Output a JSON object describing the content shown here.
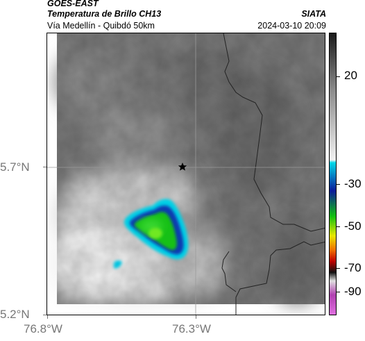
{
  "header": {
    "satellite": "GOES-EAST",
    "product": "Temperatura de Brillo CH13",
    "region": "Vía Medellín - Quibdó 50km",
    "org": "SIATA",
    "timestamp": "2024-03-10 20:09"
  },
  "map": {
    "lat_ticks": [
      {
        "value": 5.7,
        "label": "5.7°N"
      },
      {
        "value": 5.2,
        "label": "5.2°N"
      }
    ],
    "lon_ticks": [
      {
        "value": -76.8,
        "label": "76.8°W"
      },
      {
        "value": -76.3,
        "label": "76.3°W"
      }
    ],
    "marker": {
      "type": "star",
      "icon": "star-icon",
      "lon": -76.32,
      "lat": 5.7
    }
  },
  "colorbar": {
    "ticks": [
      {
        "value": 20,
        "label": "20"
      },
      {
        "value": -30,
        "label": "-30"
      },
      {
        "value": -50,
        "label": "-50"
      },
      {
        "value": -70,
        "label": "-70"
      },
      {
        "value": -90,
        "label": "-90"
      }
    ],
    "colors": {
      "warm_top": "#1a1a1a",
      "warm_mid": "#8a8a8a",
      "warm_low": "#f2f2f2",
      "cyan": "#00d8e8",
      "blue": "#0a1a9a",
      "green": "#10c010",
      "yellow": "#e8e800",
      "orange": "#f07000",
      "red": "#c00000",
      "black": "#101010",
      "magenta": "#b040b0"
    }
  }
}
